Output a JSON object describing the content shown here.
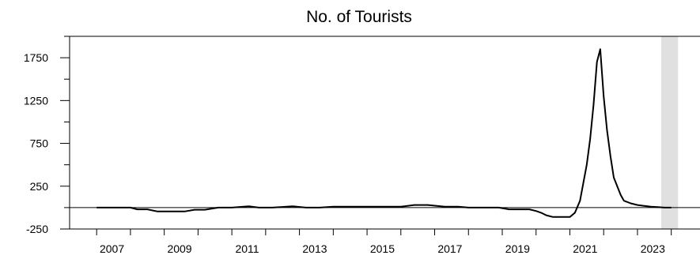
{
  "chart_data": {
    "type": "line",
    "title": "No. of Tourists",
    "xlabel": "",
    "ylabel": "",
    "xlim": [
      2006.2,
      2024.85
    ],
    "ylim": [
      -250,
      2000
    ],
    "x_ticks": [
      "2007",
      "2009",
      "2011",
      "2013",
      "2015",
      "2017",
      "2019",
      "2021",
      "2023"
    ],
    "y_ticks": [
      1750,
      1250,
      750,
      250,
      -250
    ],
    "grid": false,
    "legend": "none",
    "zero_line": true,
    "shaded_region": {
      "x_start": 2023.7,
      "x_end": 2024.2,
      "color": "#e0e0e0"
    },
    "line_color": "#000000",
    "series": [
      {
        "x": [
          2007.0,
          2007.5,
          2008.0,
          2008.2,
          2008.5,
          2008.8,
          2009.0,
          2009.3,
          2009.6,
          2009.9,
          2010.2,
          2010.6,
          2011.0,
          2011.5,
          2011.8,
          2012.2,
          2012.8,
          2013.2,
          2013.6,
          2014.0,
          2014.5,
          2015.0,
          2015.6,
          2016.0,
          2016.4,
          2016.8,
          2017.3,
          2017.7,
          2018.0,
          2018.5,
          2018.9,
          2019.2,
          2019.5,
          2019.8,
          2020.0,
          2020.15,
          2020.3,
          2020.5,
          2020.7,
          2021.0,
          2021.15,
          2021.3,
          2021.5,
          2021.6,
          2021.7,
          2021.8,
          2021.9,
          2022.0,
          2022.1,
          2022.2,
          2022.3,
          2022.5,
          2022.6,
          2022.8,
          2023.0,
          2023.2,
          2023.4,
          2023.6,
          2023.8,
          2024.0
        ],
        "y": [
          0,
          0,
          0,
          -20,
          -20,
          -45,
          -45,
          -45,
          -45,
          -25,
          -25,
          0,
          0,
          15,
          0,
          0,
          15,
          0,
          0,
          10,
          10,
          10,
          10,
          10,
          30,
          30,
          10,
          10,
          0,
          0,
          0,
          -20,
          -20,
          -20,
          -40,
          -60,
          -90,
          -110,
          -110,
          -110,
          -60,
          80,
          500,
          800,
          1200,
          1700,
          1850,
          1300,
          900,
          600,
          350,
          150,
          80,
          50,
          30,
          20,
          10,
          5,
          0,
          0
        ]
      }
    ]
  }
}
